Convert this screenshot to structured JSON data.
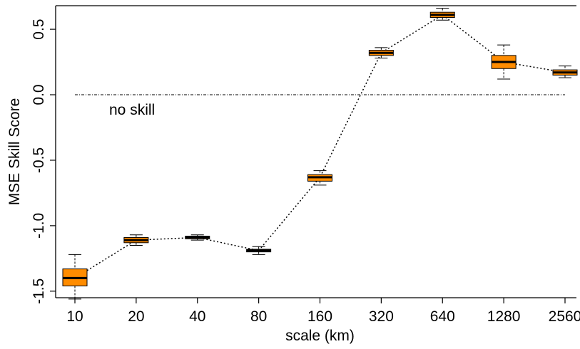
{
  "chart_data": {
    "type": "box",
    "xlabel": "scale (km)",
    "ylabel": "MSE Skill Score",
    "ylim": [
      -1.55,
      0.68
    ],
    "yticks": [
      -1.5,
      -1.0,
      -0.5,
      0.0,
      0.5
    ],
    "ytick_labels": [
      "-1.5",
      "-1.0",
      "-0.5",
      "0.0",
      "0.5"
    ],
    "categories": [
      "10",
      "20",
      "40",
      "80",
      "160",
      "320",
      "640",
      "1280",
      "2560"
    ],
    "boxes": [
      {
        "min": -1.56,
        "q1": -1.46,
        "median": -1.4,
        "q3": -1.33,
        "max": -1.22
      },
      {
        "min": -1.15,
        "q1": -1.13,
        "median": -1.11,
        "q3": -1.09,
        "max": -1.07
      },
      {
        "min": -1.11,
        "q1": -1.1,
        "median": -1.09,
        "q3": -1.08,
        "max": -1.07
      },
      {
        "min": -1.22,
        "q1": -1.2,
        "median": -1.19,
        "q3": -1.18,
        "max": -1.16
      },
      {
        "min": -0.69,
        "q1": -0.66,
        "median": -0.63,
        "q3": -0.61,
        "max": -0.58
      },
      {
        "min": 0.28,
        "q1": 0.3,
        "median": 0.32,
        "q3": 0.34,
        "max": 0.36
      },
      {
        "min": 0.57,
        "q1": 0.59,
        "median": 0.61,
        "q3": 0.63,
        "max": 0.66
      },
      {
        "min": 0.12,
        "q1": 0.2,
        "median": 0.25,
        "q3": 0.3,
        "max": 0.38
      },
      {
        "min": 0.13,
        "q1": 0.15,
        "median": 0.17,
        "q3": 0.19,
        "max": 0.22
      }
    ],
    "reference_line": {
      "y": 0.0,
      "label": "no skill"
    },
    "box_color": "#FF8C00",
    "connector": "dotted line through medians"
  }
}
